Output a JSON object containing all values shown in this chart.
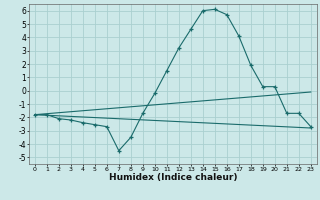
{
  "xlabel": "Humidex (Indice chaleur)",
  "bg_color": "#cce8e8",
  "grid_color": "#aad0d0",
  "line_color": "#1a6b6b",
  "xlim": [
    -0.5,
    23.5
  ],
  "ylim": [
    -5.5,
    6.5
  ],
  "xticks": [
    0,
    1,
    2,
    3,
    4,
    5,
    6,
    7,
    8,
    9,
    10,
    11,
    12,
    13,
    14,
    15,
    16,
    17,
    18,
    19,
    20,
    21,
    22,
    23
  ],
  "yticks": [
    -5,
    -4,
    -3,
    -2,
    -1,
    0,
    1,
    2,
    3,
    4,
    5,
    6
  ],
  "line1_x": [
    0,
    1,
    2,
    3,
    4,
    5,
    6,
    7,
    8,
    9,
    10,
    11,
    12,
    13,
    14,
    15,
    16,
    17,
    18,
    19,
    20,
    21,
    22,
    23
  ],
  "line1_y": [
    -1.8,
    -1.8,
    -2.1,
    -2.2,
    -2.4,
    -2.55,
    -2.7,
    -4.5,
    -3.5,
    -1.7,
    -0.2,
    1.5,
    3.2,
    4.6,
    6.0,
    6.1,
    5.7,
    4.1,
    1.9,
    0.3,
    0.3,
    -1.7,
    -1.7,
    -2.7
  ],
  "line2_x": [
    0,
    23
  ],
  "line2_y": [
    -1.8,
    -0.1
  ],
  "line3_x": [
    0,
    23
  ],
  "line3_y": [
    -1.8,
    -2.8
  ]
}
